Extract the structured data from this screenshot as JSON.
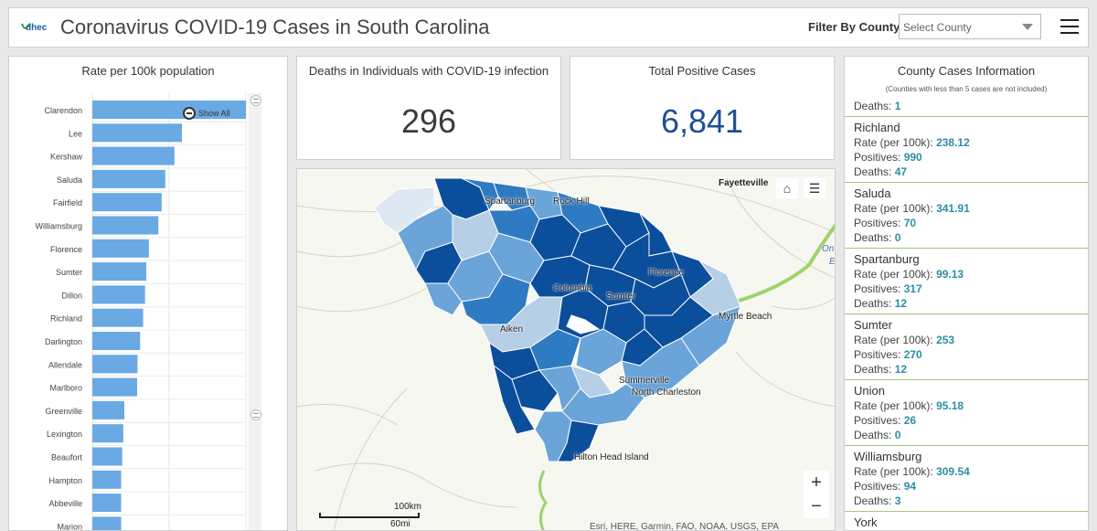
{
  "header": {
    "logo_text": "dhec",
    "title": "Coronavirus COVID-19 Cases in South Carolina",
    "filter_label": "Filter By County",
    "select_placeholder": "Select County"
  },
  "bar_chart": {
    "title": "Rate per 100k population",
    "show_all": "Show All"
  },
  "chart_data": {
    "type": "bar",
    "orientation": "horizontal",
    "title": "Rate per 100k population",
    "categories": [
      "Clarendon",
      "Lee",
      "Kershaw",
      "Saluda",
      "Fairfield",
      "Williamsburg",
      "Florence",
      "Sumter",
      "Dillon",
      "Richland",
      "Darlington",
      "Allendale",
      "Marlboro",
      "Greenville",
      "Lexington",
      "Beaufort",
      "Hampton",
      "Abbeville",
      "Marion"
    ],
    "values": [
      720,
      420,
      385,
      341.91,
      325,
      309.54,
      265,
      253,
      247,
      238.12,
      224,
      212,
      210,
      150,
      145,
      140,
      135,
      135,
      135
    ],
    "xlim": [
      0,
      720
    ],
    "color": "#6aa9e3",
    "grid": true
  },
  "deaths": {
    "title": "Deaths in Individuals with COVID-19 infection",
    "value": "296"
  },
  "positives": {
    "title": "Total Positive Cases",
    "value": "6,841"
  },
  "map": {
    "labels": {
      "fayetteville": "Fayetteville",
      "spartanburg": "Spartanburg",
      "rock_hill": "Rock Hill",
      "florence": "Florence",
      "columbia": "Columbia",
      "sumter": "Sumter",
      "myrtle_beach": "Myrtle Beach",
      "aiken": "Aiken",
      "summerville": "Summerville",
      "north_charleston": "North Charleston",
      "hilton_head": "Hilton Head Island",
      "ocean_partial": "On",
      "ocean_partial2": "E"
    },
    "scale_km": "100km",
    "scale_mi": "60mi",
    "attribution": "Esri, HERE, Garmin, FAO, NOAA, USGS, EPA",
    "zoom_in": "+",
    "zoom_out": "−",
    "home_icon_glyph": "⌂",
    "list_icon_glyph": "☰",
    "colors": {
      "dark": "#0b4e9c",
      "mid": "#2f7bc3",
      "light": "#6aa4d8",
      "pale": "#b7cfe6",
      "palest": "#dde8f3"
    }
  },
  "county_list": {
    "title": "County Cases Information",
    "subtitle": "(Counties with less than 5 cases are not included)",
    "label_rate": "Rate (per 100k):",
    "label_pos": "Positives:",
    "label_deaths": "Deaths:",
    "top_partial_deaths": "1",
    "items": [
      {
        "name": "Richland",
        "rate": "238.12",
        "positives": "990",
        "deaths": "47"
      },
      {
        "name": "Saluda",
        "rate": "341.91",
        "positives": "70",
        "deaths": "0"
      },
      {
        "name": "Spartanburg",
        "rate": "99.13",
        "positives": "317",
        "deaths": "12"
      },
      {
        "name": "Sumter",
        "rate": "253",
        "positives": "270",
        "deaths": "12"
      },
      {
        "name": "Union",
        "rate": "95.18",
        "positives": "26",
        "deaths": "0"
      },
      {
        "name": "Williamsburg",
        "rate": "309.54",
        "positives": "94",
        "deaths": "3"
      }
    ],
    "next_partial": "York"
  }
}
